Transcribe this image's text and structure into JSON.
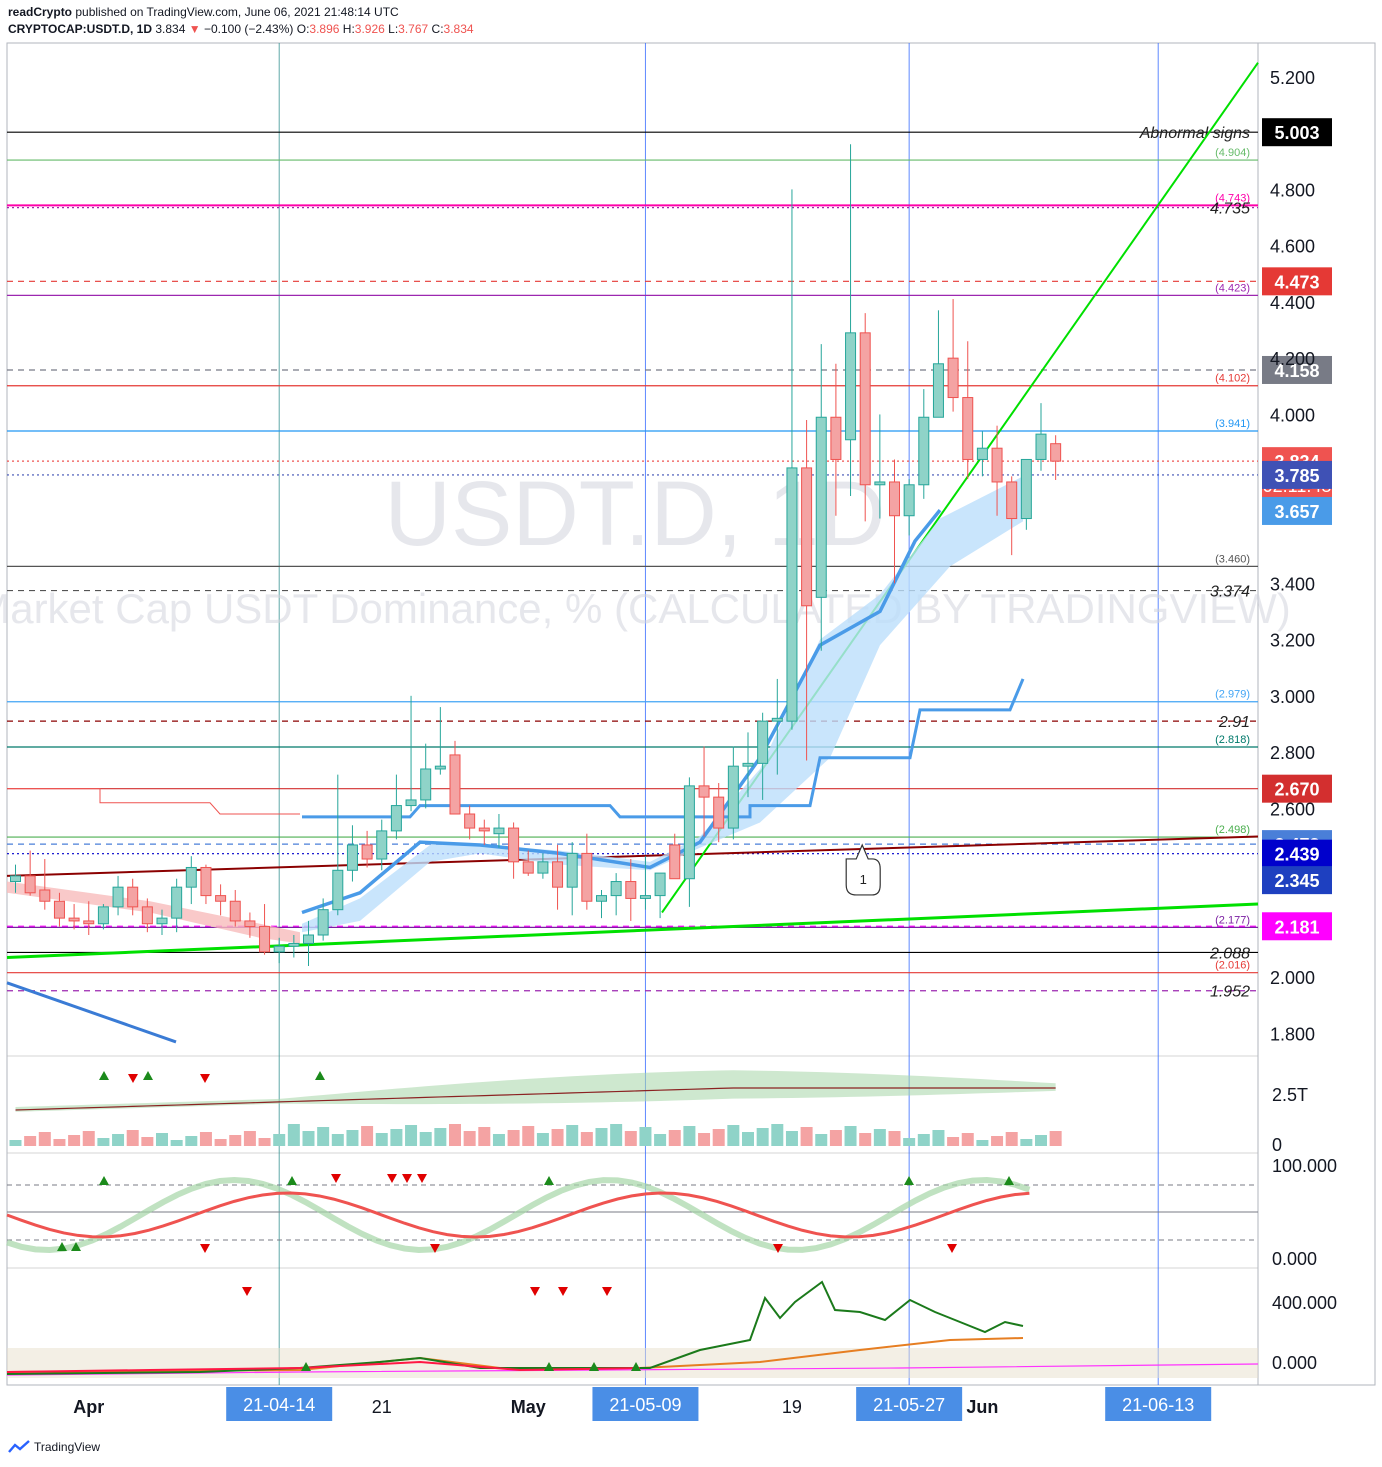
{
  "header": {
    "publisher": "readCrypto",
    "published_text": "published on TradingView.com, June 06, 2021 21:48:14 UTC",
    "symbol": "CRYPTOCAP:USDT.D, 1D",
    "last": "3.834",
    "change": "−0.100 (−2.43%)",
    "o_label": "O:",
    "o": "3.896",
    "h_label": "H:",
    "h": "3.926",
    "l_label": "L:",
    "l": "3.767",
    "c_label": "C:",
    "c": "3.834"
  },
  "watermark": {
    "symbol": "USDT.D, 1D",
    "description": "Market Cap USDT Dominance, % (CALCULATED BY TRADINGVIEW)"
  },
  "footer": {
    "brand": "TradingView"
  },
  "colors": {
    "up": "#26a69a",
    "down": "#ef5350",
    "up_fill": "#8fd3c8",
    "down_fill": "#f4a3a3",
    "blue_line": "#4a9be8",
    "cloud": "#bbdefb",
    "green_line": "#00e000",
    "maroon": "#8b0000",
    "magenta": "#ff00ff"
  },
  "chart_data": {
    "type": "candlestick",
    "title": "CRYPTOCAP:USDT.D, 1D",
    "ylim": [
      1.72,
      5.32
    ],
    "y_ticks": [
      "5.200",
      "4.800",
      "4.600",
      "4.400",
      "4.200",
      "4.000",
      "3.400",
      "3.200",
      "3.000",
      "2.800",
      "2.600",
      "2.000",
      "1.800"
    ],
    "x_ticks": [
      "Apr",
      "21",
      "May",
      "19",
      "Jun"
    ],
    "x_tick_dates": [
      "2021-04-01",
      "2021-04-21",
      "2021-05-01",
      "2021-05-19",
      "2021-06-01"
    ],
    "candles": [
      {
        "date": "2021-03-27",
        "o": 2.34,
        "h": 2.4,
        "l": 2.3,
        "c": 2.36
      },
      {
        "date": "2021-03-28",
        "o": 2.36,
        "h": 2.45,
        "l": 2.29,
        "c": 2.3
      },
      {
        "date": "2021-03-29",
        "o": 2.31,
        "h": 2.42,
        "l": 2.24,
        "c": 2.27
      },
      {
        "date": "2021-03-30",
        "o": 2.27,
        "h": 2.3,
        "l": 2.18,
        "c": 2.21
      },
      {
        "date": "2021-03-31",
        "o": 2.21,
        "h": 2.26,
        "l": 2.17,
        "c": 2.2
      },
      {
        "date": "2021-04-01",
        "o": 2.2,
        "h": 2.27,
        "l": 2.15,
        "c": 2.19
      },
      {
        "date": "2021-04-02",
        "o": 2.19,
        "h": 2.26,
        "l": 2.17,
        "c": 2.25
      },
      {
        "date": "2021-04-03",
        "o": 2.25,
        "h": 2.36,
        "l": 2.22,
        "c": 2.32
      },
      {
        "date": "2021-04-04",
        "o": 2.32,
        "h": 2.35,
        "l": 2.22,
        "c": 2.25
      },
      {
        "date": "2021-04-05",
        "o": 2.25,
        "h": 2.28,
        "l": 2.16,
        "c": 2.19
      },
      {
        "date": "2021-04-06",
        "o": 2.19,
        "h": 2.24,
        "l": 2.15,
        "c": 2.21
      },
      {
        "date": "2021-04-07",
        "o": 2.21,
        "h": 2.35,
        "l": 2.16,
        "c": 2.32
      },
      {
        "date": "2021-04-08",
        "o": 2.32,
        "h": 2.43,
        "l": 2.26,
        "c": 2.39
      },
      {
        "date": "2021-04-09",
        "o": 2.39,
        "h": 2.4,
        "l": 2.26,
        "c": 2.29
      },
      {
        "date": "2021-04-10",
        "o": 2.29,
        "h": 2.33,
        "l": 2.22,
        "c": 2.27
      },
      {
        "date": "2021-04-11",
        "o": 2.27,
        "h": 2.31,
        "l": 2.18,
        "c": 2.2
      },
      {
        "date": "2021-04-12",
        "o": 2.2,
        "h": 2.23,
        "l": 2.14,
        "c": 2.18
      },
      {
        "date": "2021-04-13",
        "o": 2.18,
        "h": 2.26,
        "l": 2.08,
        "c": 2.09
      },
      {
        "date": "2021-04-14",
        "o": 2.09,
        "h": 2.14,
        "l": 2.05,
        "c": 2.11
      },
      {
        "date": "2021-04-15",
        "o": 2.11,
        "h": 2.15,
        "l": 2.07,
        "c": 2.12
      },
      {
        "date": "2021-04-16",
        "o": 2.12,
        "h": 2.2,
        "l": 2.04,
        "c": 2.15
      },
      {
        "date": "2021-04-17",
        "o": 2.15,
        "h": 2.28,
        "l": 2.13,
        "c": 2.24
      },
      {
        "date": "2021-04-18",
        "o": 2.24,
        "h": 2.72,
        "l": 2.22,
        "c": 2.38
      },
      {
        "date": "2021-04-19",
        "o": 2.38,
        "h": 2.54,
        "l": 2.34,
        "c": 2.47
      },
      {
        "date": "2021-04-20",
        "o": 2.47,
        "h": 2.52,
        "l": 2.39,
        "c": 2.42
      },
      {
        "date": "2021-04-21",
        "o": 2.42,
        "h": 2.56,
        "l": 2.38,
        "c": 2.52
      },
      {
        "date": "2021-04-22",
        "o": 2.52,
        "h": 2.72,
        "l": 2.49,
        "c": 2.61
      },
      {
        "date": "2021-04-23",
        "o": 2.61,
        "h": 3.0,
        "l": 2.59,
        "c": 2.63
      },
      {
        "date": "2021-04-24",
        "o": 2.63,
        "h": 2.83,
        "l": 2.6,
        "c": 2.74
      },
      {
        "date": "2021-04-25",
        "o": 2.74,
        "h": 2.96,
        "l": 2.72,
        "c": 2.75
      },
      {
        "date": "2021-04-26",
        "o": 2.79,
        "h": 2.84,
        "l": 2.6,
        "c": 2.58
      },
      {
        "date": "2021-04-27",
        "o": 2.58,
        "h": 2.61,
        "l": 2.49,
        "c": 2.53
      },
      {
        "date": "2021-04-28",
        "o": 2.53,
        "h": 2.56,
        "l": 2.47,
        "c": 2.52
      },
      {
        "date": "2021-04-29",
        "o": 2.51,
        "h": 2.58,
        "l": 2.46,
        "c": 2.53
      },
      {
        "date": "2021-04-30",
        "o": 2.53,
        "h": 2.55,
        "l": 2.35,
        "c": 2.41
      },
      {
        "date": "2021-05-01",
        "o": 2.41,
        "h": 2.45,
        "l": 2.36,
        "c": 2.37
      },
      {
        "date": "2021-05-02",
        "o": 2.37,
        "h": 2.44,
        "l": 2.35,
        "c": 2.41
      },
      {
        "date": "2021-05-03",
        "o": 2.41,
        "h": 2.47,
        "l": 2.24,
        "c": 2.32
      },
      {
        "date": "2021-05-04",
        "o": 2.32,
        "h": 2.48,
        "l": 2.22,
        "c": 2.44
      },
      {
        "date": "2021-05-05",
        "o": 2.44,
        "h": 2.51,
        "l": 2.24,
        "c": 2.27
      },
      {
        "date": "2021-05-06",
        "o": 2.27,
        "h": 2.31,
        "l": 2.21,
        "c": 2.29
      },
      {
        "date": "2021-05-07",
        "o": 2.29,
        "h": 2.37,
        "l": 2.22,
        "c": 2.34
      },
      {
        "date": "2021-05-08",
        "o": 2.34,
        "h": 2.42,
        "l": 2.2,
        "c": 2.28
      },
      {
        "date": "2021-05-09",
        "o": 2.28,
        "h": 2.43,
        "l": 2.24,
        "c": 2.29
      },
      {
        "date": "2021-05-10",
        "o": 2.29,
        "h": 2.36,
        "l": 2.21,
        "c": 2.37
      },
      {
        "date": "2021-05-11",
        "o": 2.47,
        "h": 2.51,
        "l": 2.37,
        "c": 2.35
      },
      {
        "date": "2021-05-12",
        "o": 2.35,
        "h": 2.71,
        "l": 2.25,
        "c": 2.68
      },
      {
        "date": "2021-05-13",
        "o": 2.68,
        "h": 2.82,
        "l": 2.5,
        "c": 2.64
      },
      {
        "date": "2021-05-14",
        "o": 2.64,
        "h": 2.69,
        "l": 2.48,
        "c": 2.53
      },
      {
        "date": "2021-05-15",
        "o": 2.53,
        "h": 2.82,
        "l": 2.49,
        "c": 2.75
      },
      {
        "date": "2021-05-16",
        "o": 2.75,
        "h": 2.87,
        "l": 2.64,
        "c": 2.76
      },
      {
        "date": "2021-05-17",
        "o": 2.76,
        "h": 2.94,
        "l": 2.63,
        "c": 2.91
      },
      {
        "date": "2021-05-18",
        "o": 2.91,
        "h": 3.06,
        "l": 2.72,
        "c": 2.92
      },
      {
        "date": "2021-05-19",
        "o": 2.91,
        "h": 4.8,
        "l": 2.88,
        "c": 3.81
      },
      {
        "date": "2021-05-20",
        "o": 3.81,
        "h": 3.98,
        "l": 2.77,
        "c": 3.32
      },
      {
        "date": "2021-05-21",
        "o": 3.35,
        "h": 4.25,
        "l": 3.16,
        "c": 3.99
      },
      {
        "date": "2021-05-22",
        "o": 3.99,
        "h": 4.18,
        "l": 3.64,
        "c": 3.84
      },
      {
        "date": "2021-05-23",
        "o": 3.91,
        "h": 4.96,
        "l": 3.71,
        "c": 4.29
      },
      {
        "date": "2021-05-24",
        "o": 4.29,
        "h": 4.36,
        "l": 3.62,
        "c": 3.75
      },
      {
        "date": "2021-05-25",
        "o": 3.75,
        "h": 4.0,
        "l": 3.63,
        "c": 3.76
      },
      {
        "date": "2021-05-26",
        "o": 3.76,
        "h": 3.84,
        "l": 3.4,
        "c": 3.64
      },
      {
        "date": "2021-05-27",
        "o": 3.64,
        "h": 3.77,
        "l": 3.57,
        "c": 3.75
      },
      {
        "date": "2021-05-28",
        "o": 3.75,
        "h": 4.09,
        "l": 3.7,
        "c": 3.99
      },
      {
        "date": "2021-05-29",
        "o": 3.99,
        "h": 4.37,
        "l": 3.99,
        "c": 4.18
      },
      {
        "date": "2021-05-30",
        "o": 4.2,
        "h": 4.41,
        "l": 4.01,
        "c": 4.06
      },
      {
        "date": "2021-05-31",
        "o": 4.06,
        "h": 4.26,
        "l": 3.77,
        "c": 3.84
      },
      {
        "date": "2021-06-01",
        "o": 3.84,
        "h": 3.94,
        "l": 3.78,
        "c": 3.88
      },
      {
        "date": "2021-06-02",
        "o": 3.88,
        "h": 3.96,
        "l": 3.64,
        "c": 3.76
      },
      {
        "date": "2021-06-03",
        "o": 3.76,
        "h": 3.78,
        "l": 3.5,
        "c": 3.63
      },
      {
        "date": "2021-06-04",
        "o": 3.63,
        "h": 3.84,
        "l": 3.59,
        "c": 3.84
      },
      {
        "date": "2021-06-05",
        "o": 3.84,
        "h": 4.04,
        "l": 3.8,
        "c": 3.93
      },
      {
        "date": "2021-06-06",
        "o": 3.896,
        "h": 3.926,
        "l": 3.767,
        "c": 3.834
      }
    ],
    "horizontal_levels": [
      {
        "value": 5.003,
        "label": "Abnormal signs",
        "badge": "5.003",
        "color": "#000000",
        "style": "solid"
      },
      {
        "value": 4.904,
        "tag": "(4.904)",
        "color": "#66bb6a",
        "style": "solid"
      },
      {
        "value": 4.743,
        "tag": "(4.743)",
        "color": "#ff00aa",
        "style": "solid"
      },
      {
        "value": 4.735,
        "label": "4.735",
        "color": "#9c27b0",
        "style": "dotted"
      },
      {
        "value": 4.473,
        "badge": "4.473",
        "color": "#e53935",
        "style": "dashed"
      },
      {
        "value": 4.423,
        "tag": "(4.423)",
        "color": "#9c27b0",
        "style": "solid"
      },
      {
        "value": 4.158,
        "badge": "4.158",
        "color": "#787b86",
        "style": "dashed"
      },
      {
        "value": 4.102,
        "tag": "(4.102)",
        "color": "#e53935",
        "style": "solid"
      },
      {
        "value": 3.941,
        "tag": "(3.941)",
        "color": "#2196f3",
        "style": "solid"
      },
      {
        "value": 3.834,
        "badge": "3.834",
        "countdown": "02:11:48",
        "color": "#ef5350",
        "style": "dotted"
      },
      {
        "value": 3.785,
        "badge": "3.785",
        "color": "#3f51b5",
        "style": "dotted"
      },
      {
        "value": 3.657,
        "badge": "3.657",
        "color": "#4a9be8",
        "style": "none"
      },
      {
        "value": 3.46,
        "tag": "(3.460)",
        "color": "#555555",
        "style": "solid"
      },
      {
        "value": 3.374,
        "label": "3.374",
        "color": "#555555",
        "style": "dashed"
      },
      {
        "value": 2.979,
        "tag": "(2.979)",
        "color": "#42a5f5",
        "style": "solid"
      },
      {
        "value": 2.91,
        "label": "2.91",
        "color": "#8b0000",
        "style": "dashed"
      },
      {
        "value": 2.818,
        "tag": "(2.818)",
        "color": "#00796b",
        "style": "solid"
      },
      {
        "value": 2.67,
        "badge": "2.670",
        "color": "#d32f2f",
        "style": "solid"
      },
      {
        "value": 2.498,
        "tag": "(2.498)",
        "color": "#4caf50",
        "style": "solid"
      },
      {
        "value": 2.473,
        "badge": "2.473",
        "color": "#4a7fd8",
        "style": "dashed"
      },
      {
        "value": 2.439,
        "badge": "2.439",
        "color": "#0000cc",
        "style": "dotted"
      },
      {
        "value": 2.345,
        "badge": "2.345",
        "color": "#1e40c0",
        "style": "none"
      },
      {
        "value": 2.181,
        "badge": "2.181",
        "color": "#ff00ff",
        "style": "dashed"
      },
      {
        "value": 2.177,
        "tag": "(2.177)",
        "color": "#7b1fa2",
        "style": "solid"
      },
      {
        "value": 2.088,
        "label": "2.088",
        "color": "#000000",
        "style": "solid"
      },
      {
        "value": 2.016,
        "tag": "(2.016)",
        "color": "#e53935",
        "style": "solid"
      },
      {
        "value": 1.952,
        "label": "1.952",
        "color": "#9c27b0",
        "style": "dashed"
      }
    ],
    "vertical_markers": [
      {
        "date": "2021-04-14",
        "label": "21-04-14"
      },
      {
        "date": "2021-05-09",
        "label": "21-05-09"
      },
      {
        "date": "2021-05-27",
        "label": "21-05-27"
      },
      {
        "date": "2021-06-13",
        "label": "21-06-13"
      }
    ],
    "callout": {
      "label": "1",
      "date": "2021-05-24",
      "value": 2.47
    },
    "volume": {
      "axis_ticks": [
        "2.5T",
        "0"
      ]
    },
    "stochastic": {
      "axis_ticks": [
        "100.000",
        "0.000"
      ]
    },
    "third_indicator": {
      "axis_ticks": [
        "400.000",
        "0.000"
      ]
    }
  }
}
